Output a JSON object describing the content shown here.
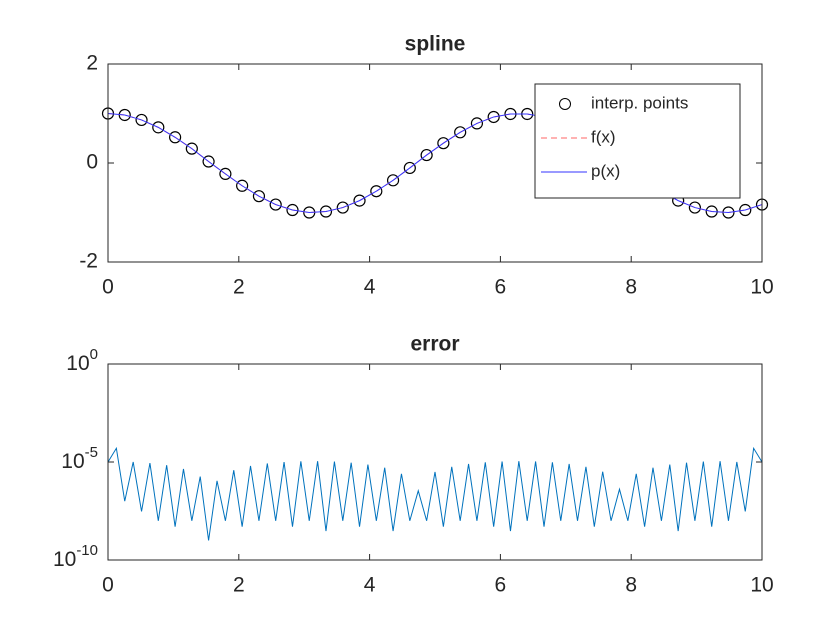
{
  "chart_data": [
    {
      "type": "line",
      "title": "spline",
      "x": [
        0,
        0.256,
        0.513,
        0.769,
        1.026,
        1.282,
        1.538,
        1.795,
        2.051,
        2.308,
        2.564,
        2.821,
        3.077,
        3.333,
        3.59,
        3.846,
        4.103,
        4.359,
        4.615,
        4.872,
        5.128,
        5.385,
        5.641,
        5.897,
        6.154,
        6.41,
        6.667,
        6.923,
        7.179,
        7.436,
        7.692,
        7.949,
        8.205,
        8.462,
        8.718,
        8.974,
        9.231,
        9.487,
        9.744,
        10
      ],
      "series": [
        {
          "name": "interp. points",
          "color": "#000000",
          "marker": "circle",
          "values": [
            1,
            0.97,
            0.87,
            0.72,
            0.52,
            0.29,
            0.03,
            -0.22,
            -0.46,
            -0.67,
            -0.84,
            -0.95,
            -1.0,
            -0.98,
            -0.9,
            -0.76,
            -0.57,
            -0.35,
            -0.1,
            0.16,
            0.4,
            0.62,
            0.8,
            0.93,
            0.99,
            0.99,
            0.93,
            0.8,
            0.63,
            0.41,
            0.16,
            -0.1,
            -0.34,
            -0.57,
            -0.76,
            -0.9,
            -0.98,
            -1.0,
            -0.95,
            -0.84
          ]
        },
        {
          "name": "f(x)",
          "color": "#ff6666",
          "dash": "6,4",
          "values": [
            1,
            0.97,
            0.87,
            0.72,
            0.52,
            0.29,
            0.03,
            -0.22,
            -0.46,
            -0.67,
            -0.84,
            -0.95,
            -1.0,
            -0.98,
            -0.9,
            -0.76,
            -0.57,
            -0.35,
            -0.1,
            0.16,
            0.4,
            0.62,
            0.8,
            0.93,
            0.99,
            0.99,
            0.93,
            0.8,
            0.63,
            0.41,
            0.16,
            -0.1,
            -0.34,
            -0.57,
            -0.76,
            -0.9,
            -0.98,
            -1.0,
            -0.95,
            -0.84
          ]
        },
        {
          "name": "p(x)",
          "color": "#3333ff",
          "values": [
            1,
            0.97,
            0.87,
            0.72,
            0.52,
            0.29,
            0.03,
            -0.22,
            -0.46,
            -0.67,
            -0.84,
            -0.95,
            -1.0,
            -0.98,
            -0.9,
            -0.76,
            -0.57,
            -0.35,
            -0.1,
            0.16,
            0.4,
            0.62,
            0.8,
            0.93,
            0.99,
            0.99,
            0.93,
            0.8,
            0.63,
            0.41,
            0.16,
            -0.1,
            -0.34,
            -0.57,
            -0.76,
            -0.9,
            -0.98,
            -1.0,
            -0.95,
            -0.84
          ]
        }
      ],
      "xlim": [
        0,
        10
      ],
      "xticks": [
        0,
        2,
        4,
        6,
        8,
        10
      ],
      "ylim": [
        -2,
        2
      ],
      "yticks": [
        -2,
        0,
        2
      ],
      "legend": "northeast"
    },
    {
      "type": "line",
      "title": "error",
      "yscale": "log",
      "x": [
        0,
        0.128,
        0.256,
        0.385,
        0.513,
        0.641,
        0.769,
        0.897,
        1.026,
        1.154,
        1.282,
        1.41,
        1.538,
        1.667,
        1.795,
        1.923,
        2.051,
        2.179,
        2.308,
        2.436,
        2.564,
        2.692,
        2.821,
        2.949,
        3.077,
        3.205,
        3.333,
        3.462,
        3.59,
        3.718,
        3.846,
        3.974,
        4.103,
        4.231,
        4.359,
        4.487,
        4.615,
        4.744,
        4.872,
        5.0,
        5.128,
        5.256,
        5.385,
        5.513,
        5.641,
        5.769,
        5.897,
        6.026,
        6.154,
        6.282,
        6.41,
        6.538,
        6.667,
        6.795,
        6.923,
        7.051,
        7.179,
        7.308,
        7.436,
        7.564,
        7.692,
        7.821,
        7.949,
        8.077,
        8.205,
        8.333,
        8.462,
        8.59,
        8.718,
        8.846,
        8.974,
        9.103,
        9.231,
        9.359,
        9.487,
        9.615,
        9.744,
        9.872,
        10
      ],
      "series": [
        {
          "name": "error",
          "color": "#0072bd",
          "values": [
            1e-05,
            5e-05,
            1e-07,
            1e-05,
            3e-08,
            8.8e-06,
            1e-08,
            6.9e-06,
            5e-09,
            4.4e-06,
            1e-08,
            1.8e-06,
            1e-09,
            1.1e-06,
            1e-08,
            3.8e-06,
            5e-09,
            6.3e-06,
            1e-08,
            8.4e-06,
            1e-08,
            9.9e-06,
            5e-09,
            1.08e-05,
            1e-08,
            1.1e-05,
            3e-09,
            1.05e-05,
            1e-08,
            9.2e-06,
            5e-09,
            7.4e-06,
            1e-08,
            5.1e-06,
            3e-09,
            2.5e-06,
            1e-08,
            3.4e-07,
            1e-08,
            3.1e-06,
            5e-09,
            5.7e-06,
            1e-08,
            7.9e-06,
            1e-08,
            9.6e-06,
            5e-09,
            1.06e-05,
            3e-09,
            1.1e-05,
            1e-08,
            1.06e-05,
            5e-09,
            9.6e-06,
            1e-08,
            7.9e-06,
            1e-08,
            5.7e-06,
            5e-09,
            3.2e-06,
            1e-08,
            4.1e-07,
            1e-08,
            2.5e-06,
            5e-09,
            5.1e-06,
            1e-08,
            7.4e-06,
            3e-09,
            9.2e-06,
            1e-08,
            1.05e-05,
            5e-09,
            1.1e-05,
            1e-08,
            1e-05,
            3e-08,
            5e-05,
            1e-05
          ]
        }
      ],
      "xlim": [
        0,
        10
      ],
      "xticks": [
        0,
        2,
        4,
        6,
        8,
        10
      ],
      "ylim": [
        1e-10,
        1
      ],
      "yticks": [
        {
          "value": 1e-10,
          "label": "10^-10"
        },
        {
          "value": 1e-05,
          "label": "10^-5"
        },
        {
          "value": 1,
          "label": "10^0"
        }
      ]
    }
  ]
}
